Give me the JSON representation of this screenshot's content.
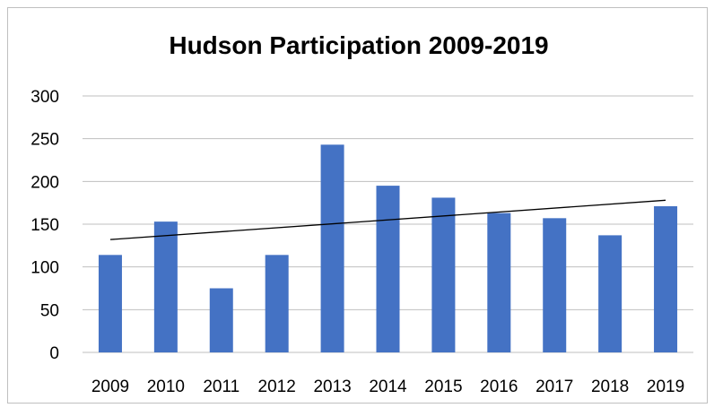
{
  "chart_data": {
    "type": "bar",
    "title": "Hudson Participation 2009-2019",
    "xlabel": "",
    "ylabel": "",
    "categories": [
      "2009",
      "2010",
      "2011",
      "2012",
      "2013",
      "2014",
      "2015",
      "2016",
      "2017",
      "2018",
      "2019"
    ],
    "values": [
      114,
      153,
      75,
      114,
      243,
      195,
      181,
      163,
      157,
      137,
      171
    ],
    "ylim": [
      0,
      300
    ],
    "yticks": [
      "0",
      "50",
      "100",
      "150",
      "200",
      "250",
      "300"
    ],
    "grid": true,
    "legend": "none",
    "trendline": {
      "type": "linear",
      "start": 132,
      "end": 178
    },
    "colors": {
      "bar": "#4472c4",
      "grid": "#bfbfbf",
      "trendline": "#000000",
      "axis": "#bfbfbf"
    }
  }
}
